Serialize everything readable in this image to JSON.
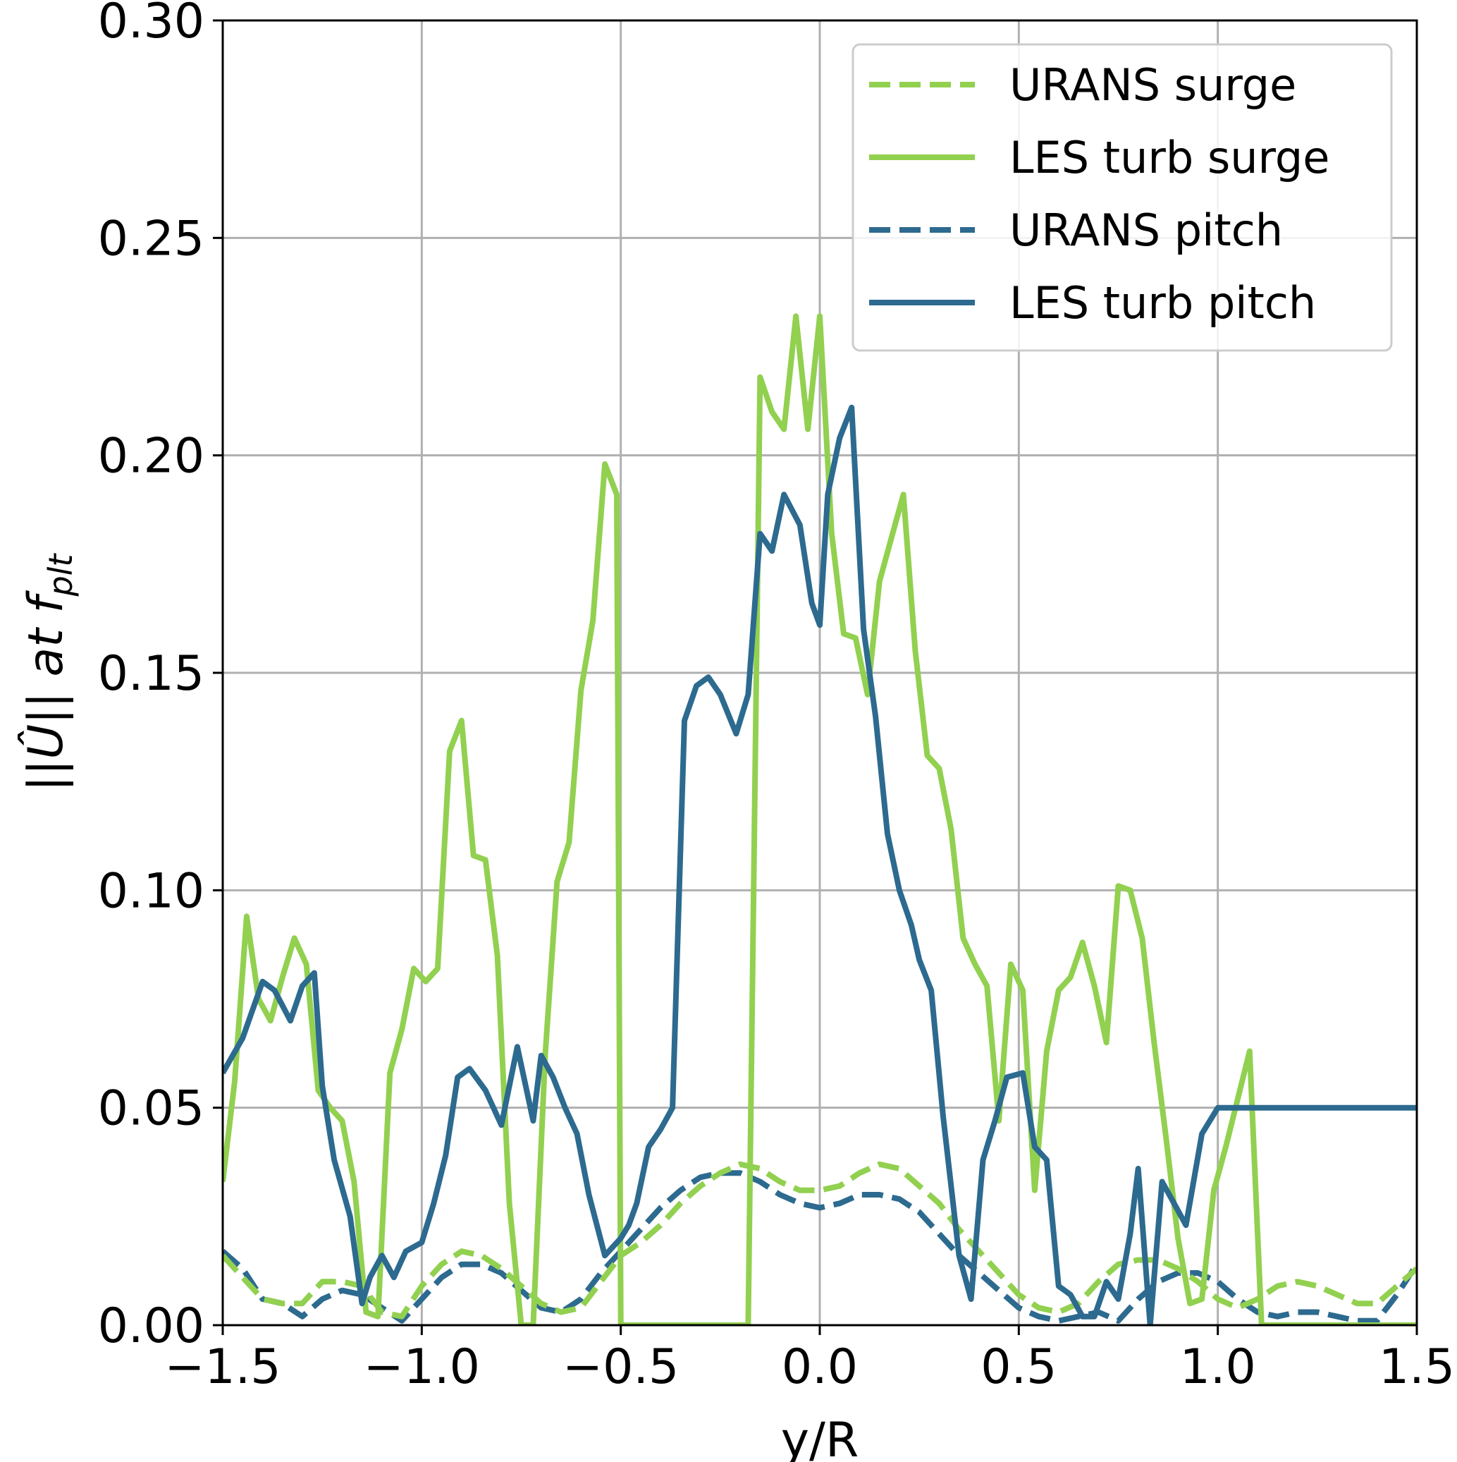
{
  "chart_data": {
    "type": "line",
    "title": "",
    "xlabel": "y/R",
    "ylabel": "||Û|| at f_plt",
    "ylabel_main": "||Û|| at f",
    "ylabel_sub": "plt",
    "xlim": [
      -1.5,
      1.5
    ],
    "ylim": [
      0.0,
      0.3
    ],
    "xticks": [
      -1.5,
      -1.0,
      -0.5,
      0.0,
      0.5,
      1.0,
      1.5
    ],
    "xtick_labels": [
      "−1.5",
      "−1.0",
      "−0.5",
      "0.0",
      "0.5",
      "1.0",
      "1.5"
    ],
    "yticks": [
      0.0,
      0.05,
      0.1,
      0.15,
      0.2,
      0.25,
      0.3
    ],
    "ytick_labels": [
      "0.00",
      "0.05",
      "0.10",
      "0.15",
      "0.20",
      "0.25",
      "0.30"
    ],
    "grid": true,
    "legend_position": "top-right",
    "series": [
      {
        "name": "URANS surge",
        "color": "#92d050",
        "linestyle": "dashed",
        "x": [
          -1.5,
          -1.45,
          -1.4,
          -1.35,
          -1.3,
          -1.25,
          -1.2,
          -1.15,
          -1.1,
          -1.05,
          -1.0,
          -0.95,
          -0.9,
          -0.85,
          -0.8,
          -0.75,
          -0.7,
          -0.65,
          -0.6,
          -0.55,
          -0.5,
          -0.45,
          -0.4,
          -0.35,
          -0.3,
          -0.25,
          -0.2,
          -0.15,
          -0.1,
          -0.05,
          0.0,
          0.05,
          0.1,
          0.15,
          0.2,
          0.25,
          0.3,
          0.35,
          0.4,
          0.45,
          0.5,
          0.55,
          0.6,
          0.65,
          0.7,
          0.75,
          0.8,
          0.85,
          0.9,
          0.95,
          1.0,
          1.05,
          1.1,
          1.15,
          1.2,
          1.25,
          1.3,
          1.35,
          1.4,
          1.45,
          1.5
        ],
        "y": [
          0.016,
          0.011,
          0.006,
          0.005,
          0.005,
          0.01,
          0.01,
          0.009,
          0.003,
          0.002,
          0.009,
          0.014,
          0.017,
          0.016,
          0.013,
          0.009,
          0.005,
          0.003,
          0.004,
          0.01,
          0.016,
          0.019,
          0.023,
          0.028,
          0.032,
          0.035,
          0.037,
          0.036,
          0.033,
          0.031,
          0.031,
          0.032,
          0.035,
          0.037,
          0.036,
          0.032,
          0.028,
          0.022,
          0.017,
          0.012,
          0.007,
          0.004,
          0.003,
          0.005,
          0.01,
          0.014,
          0.015,
          0.015,
          0.013,
          0.01,
          0.006,
          0.004,
          0.006,
          0.009,
          0.01,
          0.009,
          0.007,
          0.005,
          0.005,
          0.009,
          0.013
        ]
      },
      {
        "name": "LES turb surge",
        "color": "#92d050",
        "linestyle": "solid",
        "x": [
          -1.5,
          -1.47,
          -1.44,
          -1.41,
          -1.38,
          -1.35,
          -1.32,
          -1.29,
          -1.26,
          -1.23,
          -1.2,
          -1.17,
          -1.14,
          -1.11,
          -1.08,
          -1.05,
          -1.02,
          -0.99,
          -0.96,
          -0.93,
          -0.9,
          -0.87,
          -0.84,
          -0.81,
          -0.78,
          -0.75,
          -0.72,
          -0.69,
          -0.66,
          -0.63,
          -0.6,
          -0.57,
          -0.54,
          -0.51,
          -0.5,
          -0.48,
          -0.45,
          -0.42,
          -0.39,
          -0.36,
          -0.33,
          -0.3,
          -0.27,
          -0.24,
          -0.21,
          -0.18,
          -0.15,
          -0.12,
          -0.09,
          -0.06,
          -0.03,
          0.0,
          0.03,
          0.06,
          0.09,
          0.12,
          0.15,
          0.18,
          0.21,
          0.24,
          0.27,
          0.3,
          0.33,
          0.36,
          0.39,
          0.42,
          0.45,
          0.48,
          0.51,
          0.54,
          0.57,
          0.6,
          0.63,
          0.66,
          0.69,
          0.72,
          0.75,
          0.78,
          0.81,
          0.84,
          0.87,
          0.9,
          0.93,
          0.96,
          0.99,
          1.02,
          1.05,
          1.08,
          1.11,
          1.14,
          1.17,
          1.2,
          1.23,
          1.26,
          1.29,
          1.32,
          1.35,
          1.38,
          1.41,
          1.44,
          1.47,
          1.5
        ],
        "y": [
          0.033,
          0.056,
          0.094,
          0.075,
          0.07,
          0.08,
          0.089,
          0.083,
          0.054,
          0.05,
          0.047,
          0.033,
          0.003,
          0.002,
          0.058,
          0.068,
          0.082,
          0.079,
          0.082,
          0.132,
          0.139,
          0.108,
          0.107,
          0.085,
          0.028,
          0.0,
          0.0,
          0.062,
          0.102,
          0.111,
          0.146,
          0.162,
          0.198,
          0.191,
          0.0,
          0.0,
          0.0,
          0.0,
          0.0,
          0.0,
          0.0,
          0.0,
          0.0,
          0.0,
          0.0,
          0.0,
          0.218,
          0.21,
          0.206,
          0.232,
          0.206,
          0.232,
          0.182,
          0.159,
          0.158,
          0.145,
          0.171,
          0.181,
          0.191,
          0.155,
          0.131,
          0.128,
          0.114,
          0.089,
          0.083,
          0.078,
          0.047,
          0.083,
          0.077,
          0.031,
          0.063,
          0.077,
          0.08,
          0.088,
          0.078,
          0.065,
          0.101,
          0.1,
          0.089,
          0.065,
          0.043,
          0.02,
          0.005,
          0.006,
          0.031,
          0.041,
          0.052,
          0.063,
          0.0,
          0.0,
          0.0,
          0.0,
          0.0,
          0.0,
          0.0,
          0.0,
          0.0,
          0.0,
          0.0,
          0.0,
          0.0,
          0.0
        ]
      },
      {
        "name": "URANS pitch",
        "color": "#2d6a8f",
        "linestyle": "dashed",
        "x": [
          -1.5,
          -1.45,
          -1.4,
          -1.35,
          -1.3,
          -1.25,
          -1.2,
          -1.15,
          -1.1,
          -1.05,
          -1.0,
          -0.95,
          -0.9,
          -0.85,
          -0.8,
          -0.75,
          -0.7,
          -0.65,
          -0.6,
          -0.55,
          -0.5,
          -0.45,
          -0.4,
          -0.35,
          -0.3,
          -0.25,
          -0.2,
          -0.15,
          -0.1,
          -0.05,
          0.0,
          0.05,
          0.1,
          0.15,
          0.2,
          0.25,
          0.3,
          0.35,
          0.4,
          0.45,
          0.5,
          0.55,
          0.6,
          0.65,
          0.7,
          0.75,
          0.8,
          0.85,
          0.9,
          0.95,
          1.0,
          1.05,
          1.1,
          1.15,
          1.2,
          1.25,
          1.3,
          1.35,
          1.4,
          1.45,
          1.5
        ],
        "y": [
          0.017,
          0.013,
          0.006,
          0.005,
          0.002,
          0.006,
          0.008,
          0.007,
          0.004,
          0.001,
          0.006,
          0.011,
          0.014,
          0.014,
          0.012,
          0.008,
          0.004,
          0.003,
          0.006,
          0.012,
          0.017,
          0.022,
          0.027,
          0.031,
          0.034,
          0.035,
          0.035,
          0.033,
          0.03,
          0.028,
          0.027,
          0.028,
          0.03,
          0.03,
          0.029,
          0.026,
          0.021,
          0.016,
          0.012,
          0.008,
          0.004,
          0.002,
          0.001,
          0.002,
          0.003,
          0.001,
          0.006,
          0.01,
          0.012,
          0.012,
          0.01,
          0.006,
          0.003,
          0.002,
          0.003,
          0.003,
          0.002,
          0.001,
          0.001,
          0.007,
          0.014
        ]
      },
      {
        "name": "LES turb pitch",
        "color": "#2d6a8f",
        "linestyle": "solid",
        "x": [
          -1.5,
          -1.45,
          -1.4,
          -1.37,
          -1.33,
          -1.3,
          -1.27,
          -1.25,
          -1.22,
          -1.18,
          -1.15,
          -1.13,
          -1.1,
          -1.07,
          -1.04,
          -1.0,
          -0.97,
          -0.94,
          -0.91,
          -0.88,
          -0.84,
          -0.8,
          -0.76,
          -0.72,
          -0.7,
          -0.67,
          -0.64,
          -0.61,
          -0.58,
          -0.54,
          -0.5,
          -0.48,
          -0.46,
          -0.43,
          -0.4,
          -0.37,
          -0.34,
          -0.31,
          -0.28,
          -0.25,
          -0.21,
          -0.18,
          -0.15,
          -0.12,
          -0.09,
          -0.05,
          -0.02,
          0.0,
          0.02,
          0.05,
          0.08,
          0.11,
          0.14,
          0.17,
          0.2,
          0.23,
          0.25,
          0.28,
          0.31,
          0.35,
          0.38,
          0.41,
          0.44,
          0.47,
          0.51,
          0.54,
          0.57,
          0.6,
          0.63,
          0.66,
          0.69,
          0.72,
          0.75,
          0.78,
          0.8,
          0.83,
          0.86,
          0.89,
          0.92,
          0.96,
          1.0,
          1.03,
          1.06,
          1.09,
          1.12,
          1.15,
          1.18,
          1.21,
          1.24,
          1.27,
          1.3,
          1.33,
          1.37,
          1.41,
          1.44,
          1.47,
          1.5
        ],
        "y": [
          0.058,
          0.066,
          0.079,
          0.077,
          0.07,
          0.078,
          0.081,
          0.055,
          0.038,
          0.025,
          0.005,
          0.011,
          0.016,
          0.011,
          0.017,
          0.019,
          0.028,
          0.039,
          0.057,
          0.059,
          0.054,
          0.046,
          0.064,
          0.047,
          0.062,
          0.057,
          0.05,
          0.044,
          0.03,
          0.016,
          0.02,
          0.023,
          0.028,
          0.041,
          0.045,
          0.05,
          0.139,
          0.147,
          0.149,
          0.145,
          0.136,
          0.145,
          0.182,
          0.178,
          0.191,
          0.184,
          0.166,
          0.161,
          0.191,
          0.204,
          0.211,
          0.16,
          0.14,
          0.113,
          0.1,
          0.092,
          0.084,
          0.077,
          0.048,
          0.016,
          0.006,
          0.038,
          0.047,
          0.057,
          0.058,
          0.041,
          0.038,
          0.009,
          0.007,
          0.002,
          0.002,
          0.01,
          0.006,
          0.021,
          0.036,
          0.0,
          0.033,
          0.028,
          0.023,
          0.044,
          0.05,
          0.05,
          0.05,
          0.05,
          0.05,
          0.05,
          0.05,
          0.05,
          0.05,
          0.05,
          0.05,
          0.05,
          0.05,
          0.05,
          0.05,
          0.05,
          0.05
        ]
      }
    ]
  }
}
